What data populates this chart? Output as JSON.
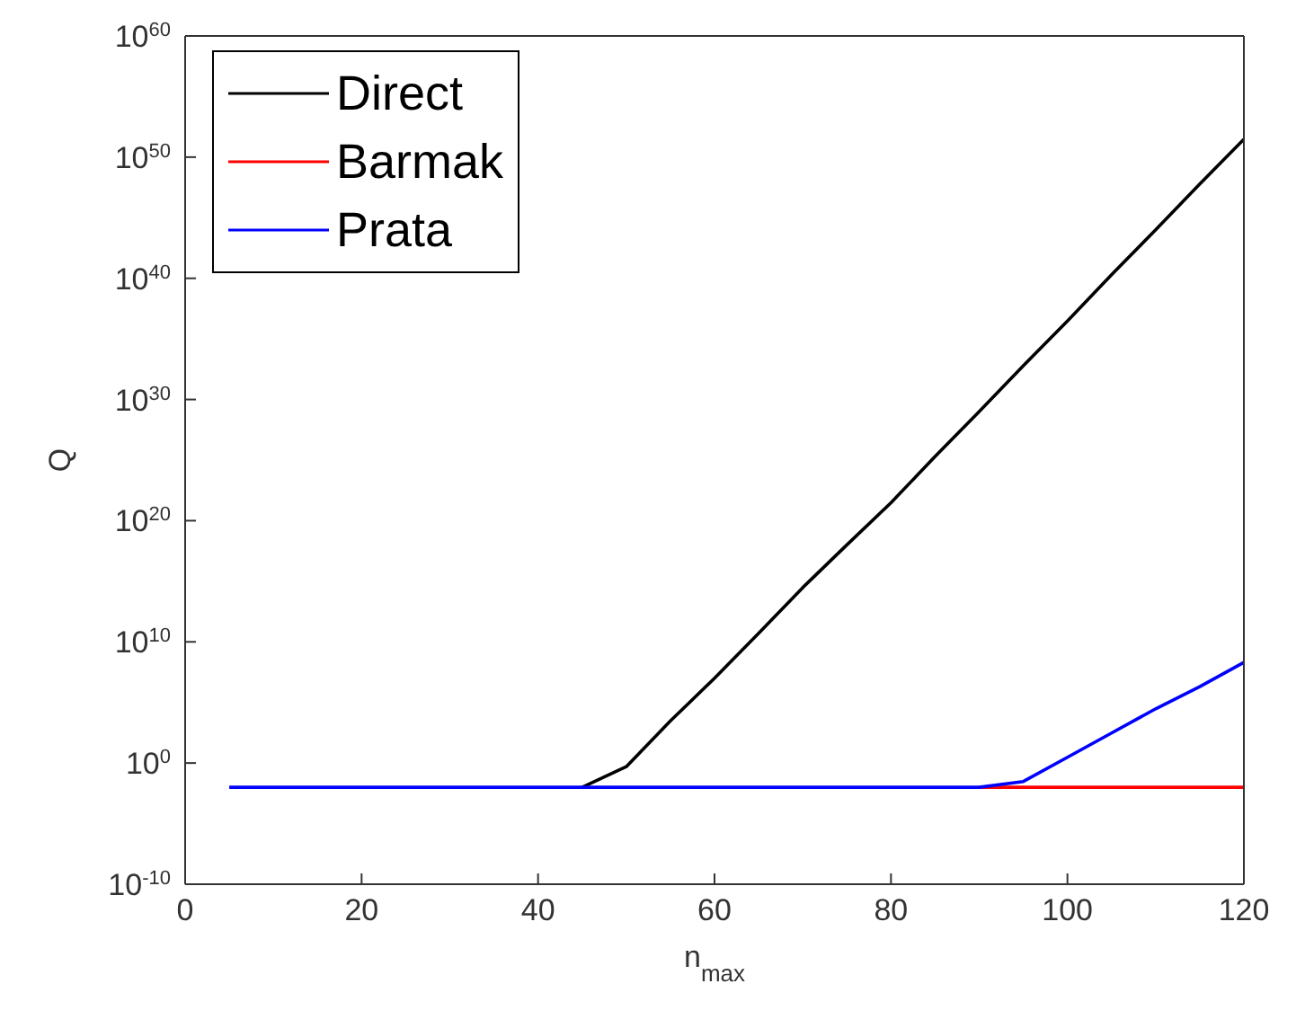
{
  "chart_data": {
    "type": "line",
    "xlabel": "n$_{max}$",
    "ylabel": "Q",
    "log": "y",
    "legend": "top left",
    "marker": "none",
    "line_style": "solid",
    "grid": false,
    "x": [
      5,
      10,
      15,
      20,
      25,
      30,
      35,
      40,
      45,
      50,
      55,
      60,
      65,
      70,
      75,
      80,
      85,
      90,
      95,
      100,
      105,
      110,
      115,
      120
    ],
    "xlim": [
      0,
      120
    ],
    "xticks": [
      0,
      20,
      40,
      60,
      80,
      100,
      120
    ],
    "ylim": [
      1e-10,
      1e+60
    ],
    "yticks": [
      {
        "value": 1e-10,
        "label": "10$^{-10}$"
      },
      {
        "value": 1,
        "label": "10$^{0}$"
      },
      {
        "value": 10000000000.0,
        "label": "10$^{10}$"
      },
      {
        "value": 1e+20,
        "label": "10$^{20}$"
      },
      {
        "value": 1e+30,
        "label": "10$^{30}$"
      },
      {
        "value": 1e+40,
        "label": "10$^{40}$"
      },
      {
        "value": 1e+50,
        "label": "10$^{50}$"
      },
      {
        "value": 1e+60,
        "label": "10$^{60}$"
      }
    ],
    "series": [
      {
        "name": "Direct",
        "color": "#000000",
        "values": [
          null,
          null,
          null,
          null,
          null,
          null,
          null,
          null,
          0.01,
          0.5,
          3000.0,
          10000000.0,
          50000000000.0,
          300000000000000.0,
          1e+18,
          3e+21,
          2e+25,
          1e+29,
          6e+32,
          3e+36,
          2e+40,
          1e+44,
          6e+47,
          3e+51
        ]
      },
      {
        "name": "Barmak",
        "color": "#ff0000",
        "values": [
          null,
          null,
          null,
          null,
          null,
          null,
          null,
          null,
          null,
          null,
          null,
          null,
          null,
          null,
          null,
          null,
          null,
          0.01,
          0.01,
          0.01,
          0.01,
          0.01,
          0.01,
          0.01
        ]
      },
      {
        "name": "Prata",
        "color": "#0000ff",
        "values": [
          0.01,
          0.01,
          0.01,
          0.01,
          0.01,
          0.01,
          0.01,
          0.01,
          0.01,
          0.01,
          0.01,
          0.01,
          0.01,
          0.01,
          0.01,
          0.01,
          0.01,
          0.01,
          0.03,
          3,
          300,
          30000.0,
          2000000.0,
          200000000.0
        ]
      }
    ]
  }
}
